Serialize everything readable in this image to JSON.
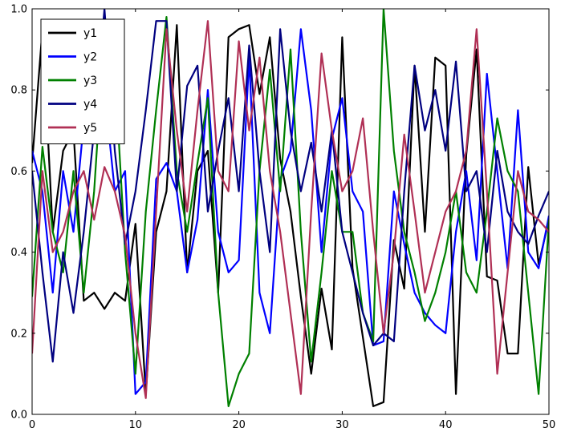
{
  "figure": {
    "background": "#ffffff",
    "axes_color": "#000000"
  },
  "chart_data": {
    "type": "line",
    "title": "",
    "xlabel": "",
    "ylabel": "",
    "xlim": [
      0,
      50
    ],
    "ylim": [
      0.0,
      1.0
    ],
    "x_ticks": [
      "0",
      "10",
      "20",
      "30",
      "40",
      "50"
    ],
    "x_tick_values": [
      0,
      10,
      20,
      30,
      40,
      50
    ],
    "y_ticks": [
      "0.0",
      "0.2",
      "0.4",
      "0.6",
      "0.8",
      "1.0"
    ],
    "y_tick_values": [
      0.0,
      0.2,
      0.4,
      0.6,
      0.8,
      1.0
    ],
    "grid": false,
    "legend_position": "upper left",
    "line_width": 2.2,
    "series": [
      {
        "name": "y1",
        "color": "#000000",
        "values": [
          0.62,
          0.95,
          0.45,
          0.65,
          0.7,
          0.28,
          0.3,
          0.26,
          0.3,
          0.28,
          0.47,
          0.05,
          0.45,
          0.55,
          0.96,
          0.35,
          0.6,
          0.65,
          0.3,
          0.93,
          0.95,
          0.96,
          0.79,
          0.93,
          0.63,
          0.5,
          0.29,
          0.1,
          0.31,
          0.16,
          0.93,
          0.36,
          0.19,
          0.02,
          0.03,
          0.43,
          0.31,
          0.86,
          0.45,
          0.88,
          0.86,
          0.05,
          0.64,
          0.9,
          0.34,
          0.33,
          0.15,
          0.15,
          0.61,
          0.37,
          0.48
        ]
      },
      {
        "name": "y2",
        "color": "#0000ff",
        "values": [
          0.65,
          0.55,
          0.3,
          0.6,
          0.45,
          0.72,
          0.95,
          0.8,
          0.55,
          0.6,
          0.05,
          0.08,
          0.58,
          0.62,
          0.55,
          0.35,
          0.48,
          0.8,
          0.45,
          0.35,
          0.38,
          0.88,
          0.3,
          0.2,
          0.58,
          0.65,
          0.95,
          0.75,
          0.4,
          0.68,
          0.78,
          0.55,
          0.5,
          0.17,
          0.18,
          0.55,
          0.42,
          0.3,
          0.25,
          0.22,
          0.2,
          0.45,
          0.6,
          0.38,
          0.84,
          0.6,
          0.36,
          0.75,
          0.4,
          0.36,
          0.49
        ]
      },
      {
        "name": "y3",
        "color": "#008000",
        "values": [
          0.29,
          0.66,
          0.45,
          0.35,
          0.6,
          0.3,
          0.55,
          0.94,
          0.85,
          0.4,
          0.1,
          0.5,
          0.75,
          0.98,
          0.6,
          0.45,
          0.62,
          0.78,
          0.3,
          0.02,
          0.1,
          0.15,
          0.6,
          0.85,
          0.55,
          0.9,
          0.45,
          0.13,
          0.35,
          0.6,
          0.45,
          0.45,
          0.25,
          0.18,
          1.0,
          0.65,
          0.45,
          0.35,
          0.23,
          0.3,
          0.4,
          0.55,
          0.35,
          0.3,
          0.5,
          0.73,
          0.6,
          0.55,
          0.3,
          0.05,
          0.48
        ]
      },
      {
        "name": "y4",
        "color": "#000080",
        "values": [
          0.6,
          0.35,
          0.13,
          0.4,
          0.25,
          0.45,
          0.7,
          1.0,
          0.65,
          0.42,
          0.55,
          0.75,
          0.97,
          0.97,
          0.55,
          0.81,
          0.86,
          0.5,
          0.65,
          0.78,
          0.55,
          0.91,
          0.6,
          0.4,
          0.95,
          0.7,
          0.55,
          0.67,
          0.5,
          0.7,
          0.45,
          0.35,
          0.25,
          0.17,
          0.2,
          0.18,
          0.55,
          0.86,
          0.7,
          0.8,
          0.65,
          0.87,
          0.55,
          0.6,
          0.4,
          0.65,
          0.5,
          0.45,
          0.42,
          0.49,
          0.55
        ]
      },
      {
        "name": "y5",
        "color": "#b03055",
        "values": [
          0.15,
          0.6,
          0.4,
          0.45,
          0.55,
          0.6,
          0.48,
          0.61,
          0.55,
          0.44,
          0.2,
          0.04,
          0.5,
          0.95,
          0.7,
          0.5,
          0.75,
          0.97,
          0.6,
          0.55,
          0.92,
          0.7,
          0.88,
          0.6,
          0.45,
          0.25,
          0.05,
          0.5,
          0.89,
          0.7,
          0.55,
          0.6,
          0.73,
          0.45,
          0.2,
          0.4,
          0.69,
          0.5,
          0.3,
          0.4,
          0.5,
          0.55,
          0.65,
          0.95,
          0.55,
          0.1,
          0.35,
          0.6,
          0.5,
          0.48,
          0.45
        ]
      }
    ]
  }
}
